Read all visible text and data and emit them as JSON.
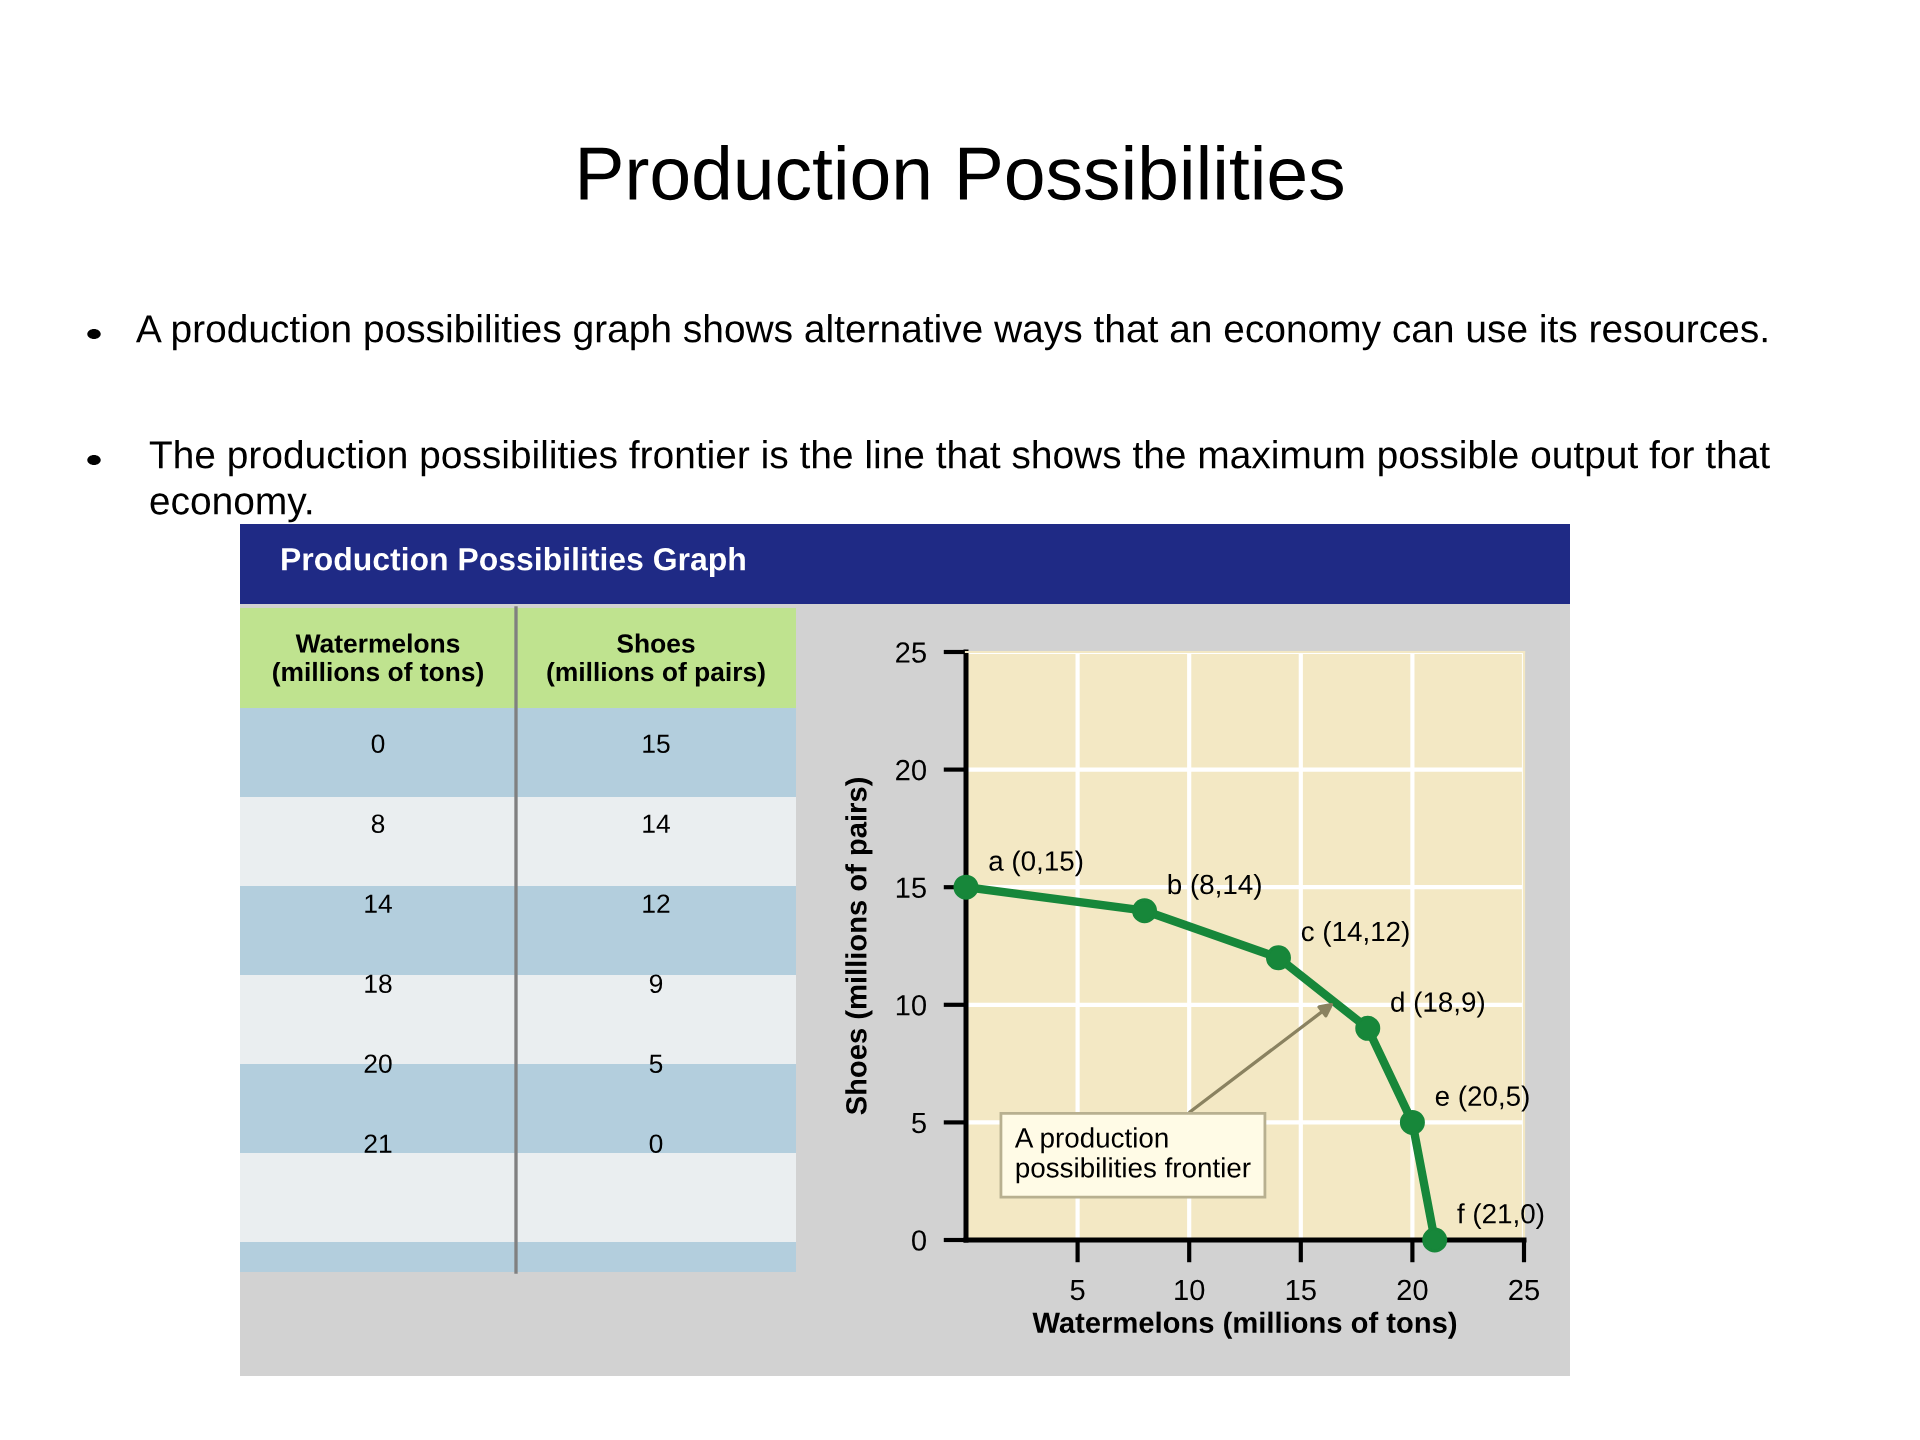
{
  "chart_data": {
    "type": "line",
    "title": "Production Possibilities",
    "subtitle": "Production Possibilities Graph",
    "xlabel": "Watermelons (millions of tons)",
    "ylabel": "Shoes (millions of pairs)",
    "annotations": [
      "A production possibilities graph shows alternative ways that an economy can use its resources.",
      "The production possibilities frontier is the line that shows the maximum possible output for that economy.",
      "Watermelons\n(millions of tons)",
      "Shoes\n(millions of pairs)",
      {
        "text": "A production\npossibilities frontier",
        "x": 16.5,
        "y": 10.1
      },
      {
        "text": "a (0,15)",
        "x": 0,
        "y": 15
      },
      {
        "text": "b (8,14)",
        "x": 8,
        "y": 14
      },
      {
        "text": "c (14,12)",
        "x": 14,
        "y": 12
      },
      {
        "text": "d (18,9)",
        "x": 18,
        "y": 9
      },
      {
        "text": "e (20,5)",
        "x": 20,
        "y": 5
      },
      {
        "text": "f (21,0)",
        "x": 21,
        "y": 0
      },
      "0",
      "15",
      "8",
      "14",
      "14",
      "12",
      "18",
      "9",
      "20",
      "5",
      "21",
      "0"
    ],
    "x": [
      0,
      8,
      14,
      18,
      20,
      21
    ],
    "series": [
      {
        "color": "#17873a",
        "values": [
          15,
          14,
          12,
          9,
          5,
          0
        ]
      }
    ],
    "xlim": [
      0,
      25
    ],
    "ylim": [
      0,
      25
    ],
    "xticks": [
      5,
      10,
      15,
      20,
      25
    ],
    "yticks": [
      0,
      5,
      10,
      15,
      20,
      25
    ],
    "grid": true,
    "marker": "circle",
    "line_style": "solid"
  }
}
